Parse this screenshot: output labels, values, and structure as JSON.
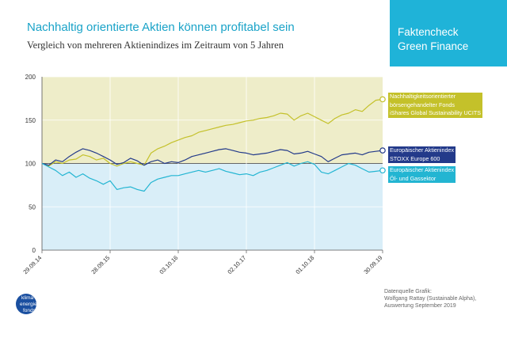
{
  "header": {
    "title": "Nachhaltig orientierte Aktien können profitabel sein",
    "subtitle": "Vergleich von mehreren Aktienindizes im Zeitraum von 5 Jahren"
  },
  "badge": {
    "line1": "Faktencheck",
    "line2": "Green Finance"
  },
  "legend": {
    "green": [
      "Nachhaltigkeitsorientierter",
      "börsengehandelter Fonds",
      "iShares Global Sustainability UCITS"
    ],
    "blue": [
      "Europäischer Aktienindex",
      "STOXX Europe 600"
    ],
    "cyan": [
      "Europäischer Aktienindex",
      "Öl- und Gassektor"
    ]
  },
  "source": {
    "line1": "Datenquelle Grafik:",
    "line2": "Wolfgang Rattay (Sustainable Alpha),",
    "line3": "Auswertung September 2019"
  },
  "logo": {
    "line1": "klima+",
    "line2": "energie",
    "line3": "fonds"
  },
  "colors": {
    "green": "#c4c12a",
    "blue": "#233a8a",
    "cyan": "#23b5d2",
    "green_fill": "#eeedc9",
    "cyan_fill": "#d9eef8",
    "title": "#1aa3c8"
  },
  "chart_data": {
    "type": "line",
    "title": "Vergleich von mehreren Aktienindizes im Zeitraum von 5 Jahren",
    "xlabel": "",
    "ylabel": "",
    "x_range": [
      0,
      5
    ],
    "ylim": [
      0,
      200
    ],
    "yticks": [
      0,
      50,
      100,
      150,
      200
    ],
    "xticks": [
      {
        "label": "29.09.14",
        "x": 0
      },
      {
        "label": "28.09.15",
        "x": 1
      },
      {
        "label": "03.10.16",
        "x": 2
      },
      {
        "label": "02.10.17",
        "x": 3
      },
      {
        "label": "01.10.18",
        "x": 4
      },
      {
        "label": "30.09.19",
        "x": 5
      }
    ],
    "series": [
      {
        "name": "iShares Global Sustainability UCITS",
        "color": "#c4c12a",
        "points": [
          [
            0,
            100
          ],
          [
            0.1,
            97
          ],
          [
            0.2,
            102
          ],
          [
            0.3,
            100
          ],
          [
            0.4,
            104
          ],
          [
            0.5,
            105
          ],
          [
            0.6,
            110
          ],
          [
            0.7,
            108
          ],
          [
            0.8,
            104
          ],
          [
            0.9,
            106
          ],
          [
            1.0,
            100
          ],
          [
            1.1,
            97
          ],
          [
            1.2,
            100
          ],
          [
            1.3,
            102
          ],
          [
            1.4,
            100
          ],
          [
            1.5,
            98
          ],
          [
            1.6,
            112
          ],
          [
            1.7,
            117
          ],
          [
            1.8,
            120
          ],
          [
            1.9,
            124
          ],
          [
            2.0,
            127
          ],
          [
            2.1,
            130
          ],
          [
            2.2,
            132
          ],
          [
            2.3,
            136
          ],
          [
            2.4,
            138
          ],
          [
            2.5,
            140
          ],
          [
            2.6,
            142
          ],
          [
            2.7,
            144
          ],
          [
            2.8,
            145
          ],
          [
            2.9,
            147
          ],
          [
            3.0,
            149
          ],
          [
            3.1,
            150
          ],
          [
            3.2,
            152
          ],
          [
            3.3,
            153
          ],
          [
            3.4,
            155
          ],
          [
            3.5,
            158
          ],
          [
            3.6,
            157
          ],
          [
            3.7,
            150
          ],
          [
            3.8,
            155
          ],
          [
            3.9,
            158
          ],
          [
            4.0,
            154
          ],
          [
            4.1,
            150
          ],
          [
            4.2,
            146
          ],
          [
            4.3,
            152
          ],
          [
            4.4,
            156
          ],
          [
            4.5,
            158
          ],
          [
            4.6,
            162
          ],
          [
            4.7,
            160
          ],
          [
            4.8,
            167
          ],
          [
            4.9,
            173
          ],
          [
            5.0,
            174
          ]
        ],
        "end_value": 174
      },
      {
        "name": "STOXX Europe 600",
        "color": "#233a8a",
        "points": [
          [
            0,
            100
          ],
          [
            0.1,
            98
          ],
          [
            0.2,
            104
          ],
          [
            0.3,
            102
          ],
          [
            0.4,
            108
          ],
          [
            0.5,
            113
          ],
          [
            0.6,
            117
          ],
          [
            0.7,
            115
          ],
          [
            0.8,
            112
          ],
          [
            0.9,
            108
          ],
          [
            1.0,
            104
          ],
          [
            1.1,
            99
          ],
          [
            1.2,
            101
          ],
          [
            1.3,
            106
          ],
          [
            1.4,
            103
          ],
          [
            1.5,
            98
          ],
          [
            1.6,
            102
          ],
          [
            1.7,
            104
          ],
          [
            1.8,
            100
          ],
          [
            1.9,
            102
          ],
          [
            2.0,
            101
          ],
          [
            2.1,
            104
          ],
          [
            2.2,
            108
          ],
          [
            2.3,
            110
          ],
          [
            2.4,
            112
          ],
          [
            2.5,
            114
          ],
          [
            2.6,
            116
          ],
          [
            2.7,
            117
          ],
          [
            2.8,
            115
          ],
          [
            2.9,
            113
          ],
          [
            3.0,
            112
          ],
          [
            3.1,
            110
          ],
          [
            3.2,
            111
          ],
          [
            3.3,
            112
          ],
          [
            3.4,
            114
          ],
          [
            3.5,
            116
          ],
          [
            3.6,
            115
          ],
          [
            3.7,
            111
          ],
          [
            3.8,
            112
          ],
          [
            3.9,
            114
          ],
          [
            4.0,
            111
          ],
          [
            4.1,
            108
          ],
          [
            4.2,
            102
          ],
          [
            4.3,
            106
          ],
          [
            4.4,
            110
          ],
          [
            4.5,
            111
          ],
          [
            4.6,
            112
          ],
          [
            4.7,
            110
          ],
          [
            4.8,
            113
          ],
          [
            4.9,
            114
          ],
          [
            5.0,
            115
          ]
        ],
        "end_value": 115
      },
      {
        "name": "Öl- und Gassektor",
        "color": "#23b5d2",
        "points": [
          [
            0,
            100
          ],
          [
            0.1,
            96
          ],
          [
            0.2,
            92
          ],
          [
            0.3,
            86
          ],
          [
            0.4,
            90
          ],
          [
            0.5,
            84
          ],
          [
            0.6,
            88
          ],
          [
            0.7,
            83
          ],
          [
            0.8,
            80
          ],
          [
            0.9,
            76
          ],
          [
            1.0,
            80
          ],
          [
            1.1,
            70
          ],
          [
            1.2,
            72
          ],
          [
            1.3,
            73
          ],
          [
            1.4,
            70
          ],
          [
            1.5,
            68
          ],
          [
            1.6,
            78
          ],
          [
            1.7,
            82
          ],
          [
            1.8,
            84
          ],
          [
            1.9,
            86
          ],
          [
            2.0,
            86
          ],
          [
            2.1,
            88
          ],
          [
            2.2,
            90
          ],
          [
            2.3,
            92
          ],
          [
            2.4,
            90
          ],
          [
            2.5,
            92
          ],
          [
            2.6,
            94
          ],
          [
            2.7,
            91
          ],
          [
            2.8,
            89
          ],
          [
            2.9,
            87
          ],
          [
            3.0,
            88
          ],
          [
            3.1,
            86
          ],
          [
            3.2,
            90
          ],
          [
            3.3,
            92
          ],
          [
            3.4,
            95
          ],
          [
            3.5,
            98
          ],
          [
            3.6,
            101
          ],
          [
            3.7,
            97
          ],
          [
            3.8,
            100
          ],
          [
            3.9,
            102
          ],
          [
            4.0,
            99
          ],
          [
            4.1,
            90
          ],
          [
            4.2,
            88
          ],
          [
            4.3,
            92
          ],
          [
            4.4,
            96
          ],
          [
            4.5,
            100
          ],
          [
            4.6,
            98
          ],
          [
            4.7,
            94
          ],
          [
            4.8,
            90
          ],
          [
            4.9,
            91
          ],
          [
            5.0,
            92
          ]
        ],
        "end_value": 92
      }
    ]
  }
}
